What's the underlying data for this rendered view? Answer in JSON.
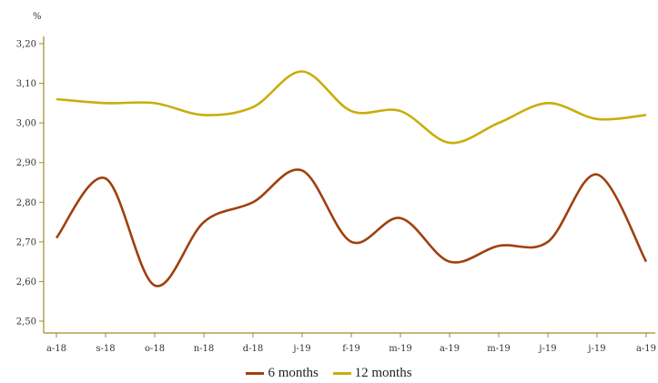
{
  "chart_data": {
    "type": "line",
    "unit_label": "%",
    "categories": [
      "a-18",
      "s-18",
      "o-18",
      "n-18",
      "d-18",
      "j-19",
      "f-19",
      "m-19",
      "a-19",
      "m-19",
      "j-19",
      "j-19",
      "a-19"
    ],
    "ylim": [
      2.5,
      3.2
    ],
    "yticks": [
      "2,50",
      "2,60",
      "2,70",
      "2,80",
      "2,90",
      "3,00",
      "3,10",
      "3,20"
    ],
    "series": [
      {
        "name": "6 months",
        "color": "#a0400f",
        "values": [
          2.71,
          2.86,
          2.59,
          2.75,
          2.8,
          2.88,
          2.7,
          2.76,
          2.65,
          2.69,
          2.7,
          2.87,
          2.65
        ]
      },
      {
        "name": "12 months",
        "color": "#c9ae0c",
        "values": [
          3.06,
          3.05,
          3.05,
          3.02,
          3.04,
          3.13,
          3.03,
          3.03,
          2.95,
          3.0,
          3.05,
          3.01,
          3.02
        ]
      }
    ],
    "grid": false,
    "legend_position": "bottom-center"
  }
}
